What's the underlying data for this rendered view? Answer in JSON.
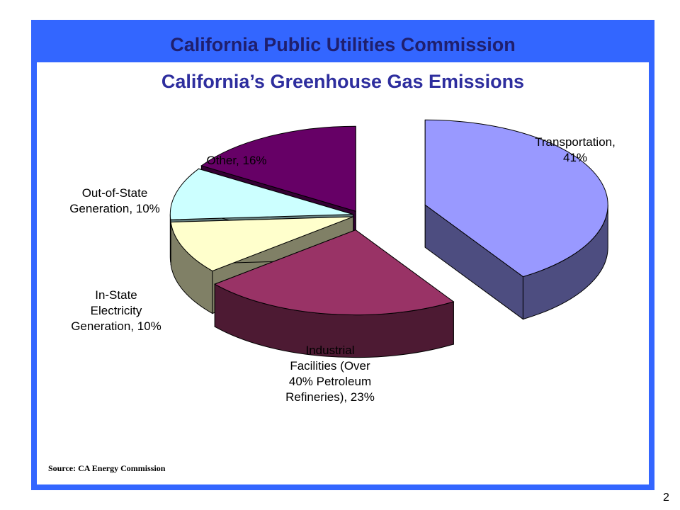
{
  "header": {
    "title": "California Public Utilities Commission"
  },
  "source_note": "Source: CA Energy Commission",
  "page_number": "2",
  "chart_data": {
    "type": "pie",
    "title": "California’s Greenhouse Gas Emissions",
    "style": "3d-exploded",
    "legend": "none",
    "slices": [
      {
        "key": "transportation",
        "value": 41,
        "label_lines": [
          "Transportation,",
          "41%"
        ],
        "color": "#9999ff",
        "side_color": "#4d4d80"
      },
      {
        "key": "industrial",
        "value": 23,
        "label_lines": [
          "Industrial",
          "Facilities (Over",
          "40% Petroleum",
          "Refineries), 23%"
        ],
        "color": "#993366",
        "side_color": "#4d1a33"
      },
      {
        "key": "in-state-electricity",
        "value": 10,
        "label_lines": [
          "In-State",
          "Electricity",
          "Generation, 10%"
        ],
        "color": "#ffffcc",
        "side_color": "#808066"
      },
      {
        "key": "out-of-state-generation",
        "value": 10,
        "label_lines": [
          "Out-of-State",
          "Generation, 10%"
        ],
        "color": "#ccffff",
        "side_color": "#668080"
      },
      {
        "key": "other",
        "value": 16,
        "label_lines": [
          "Other, 16%"
        ],
        "color": "#660066",
        "side_color": "#330033"
      }
    ]
  }
}
